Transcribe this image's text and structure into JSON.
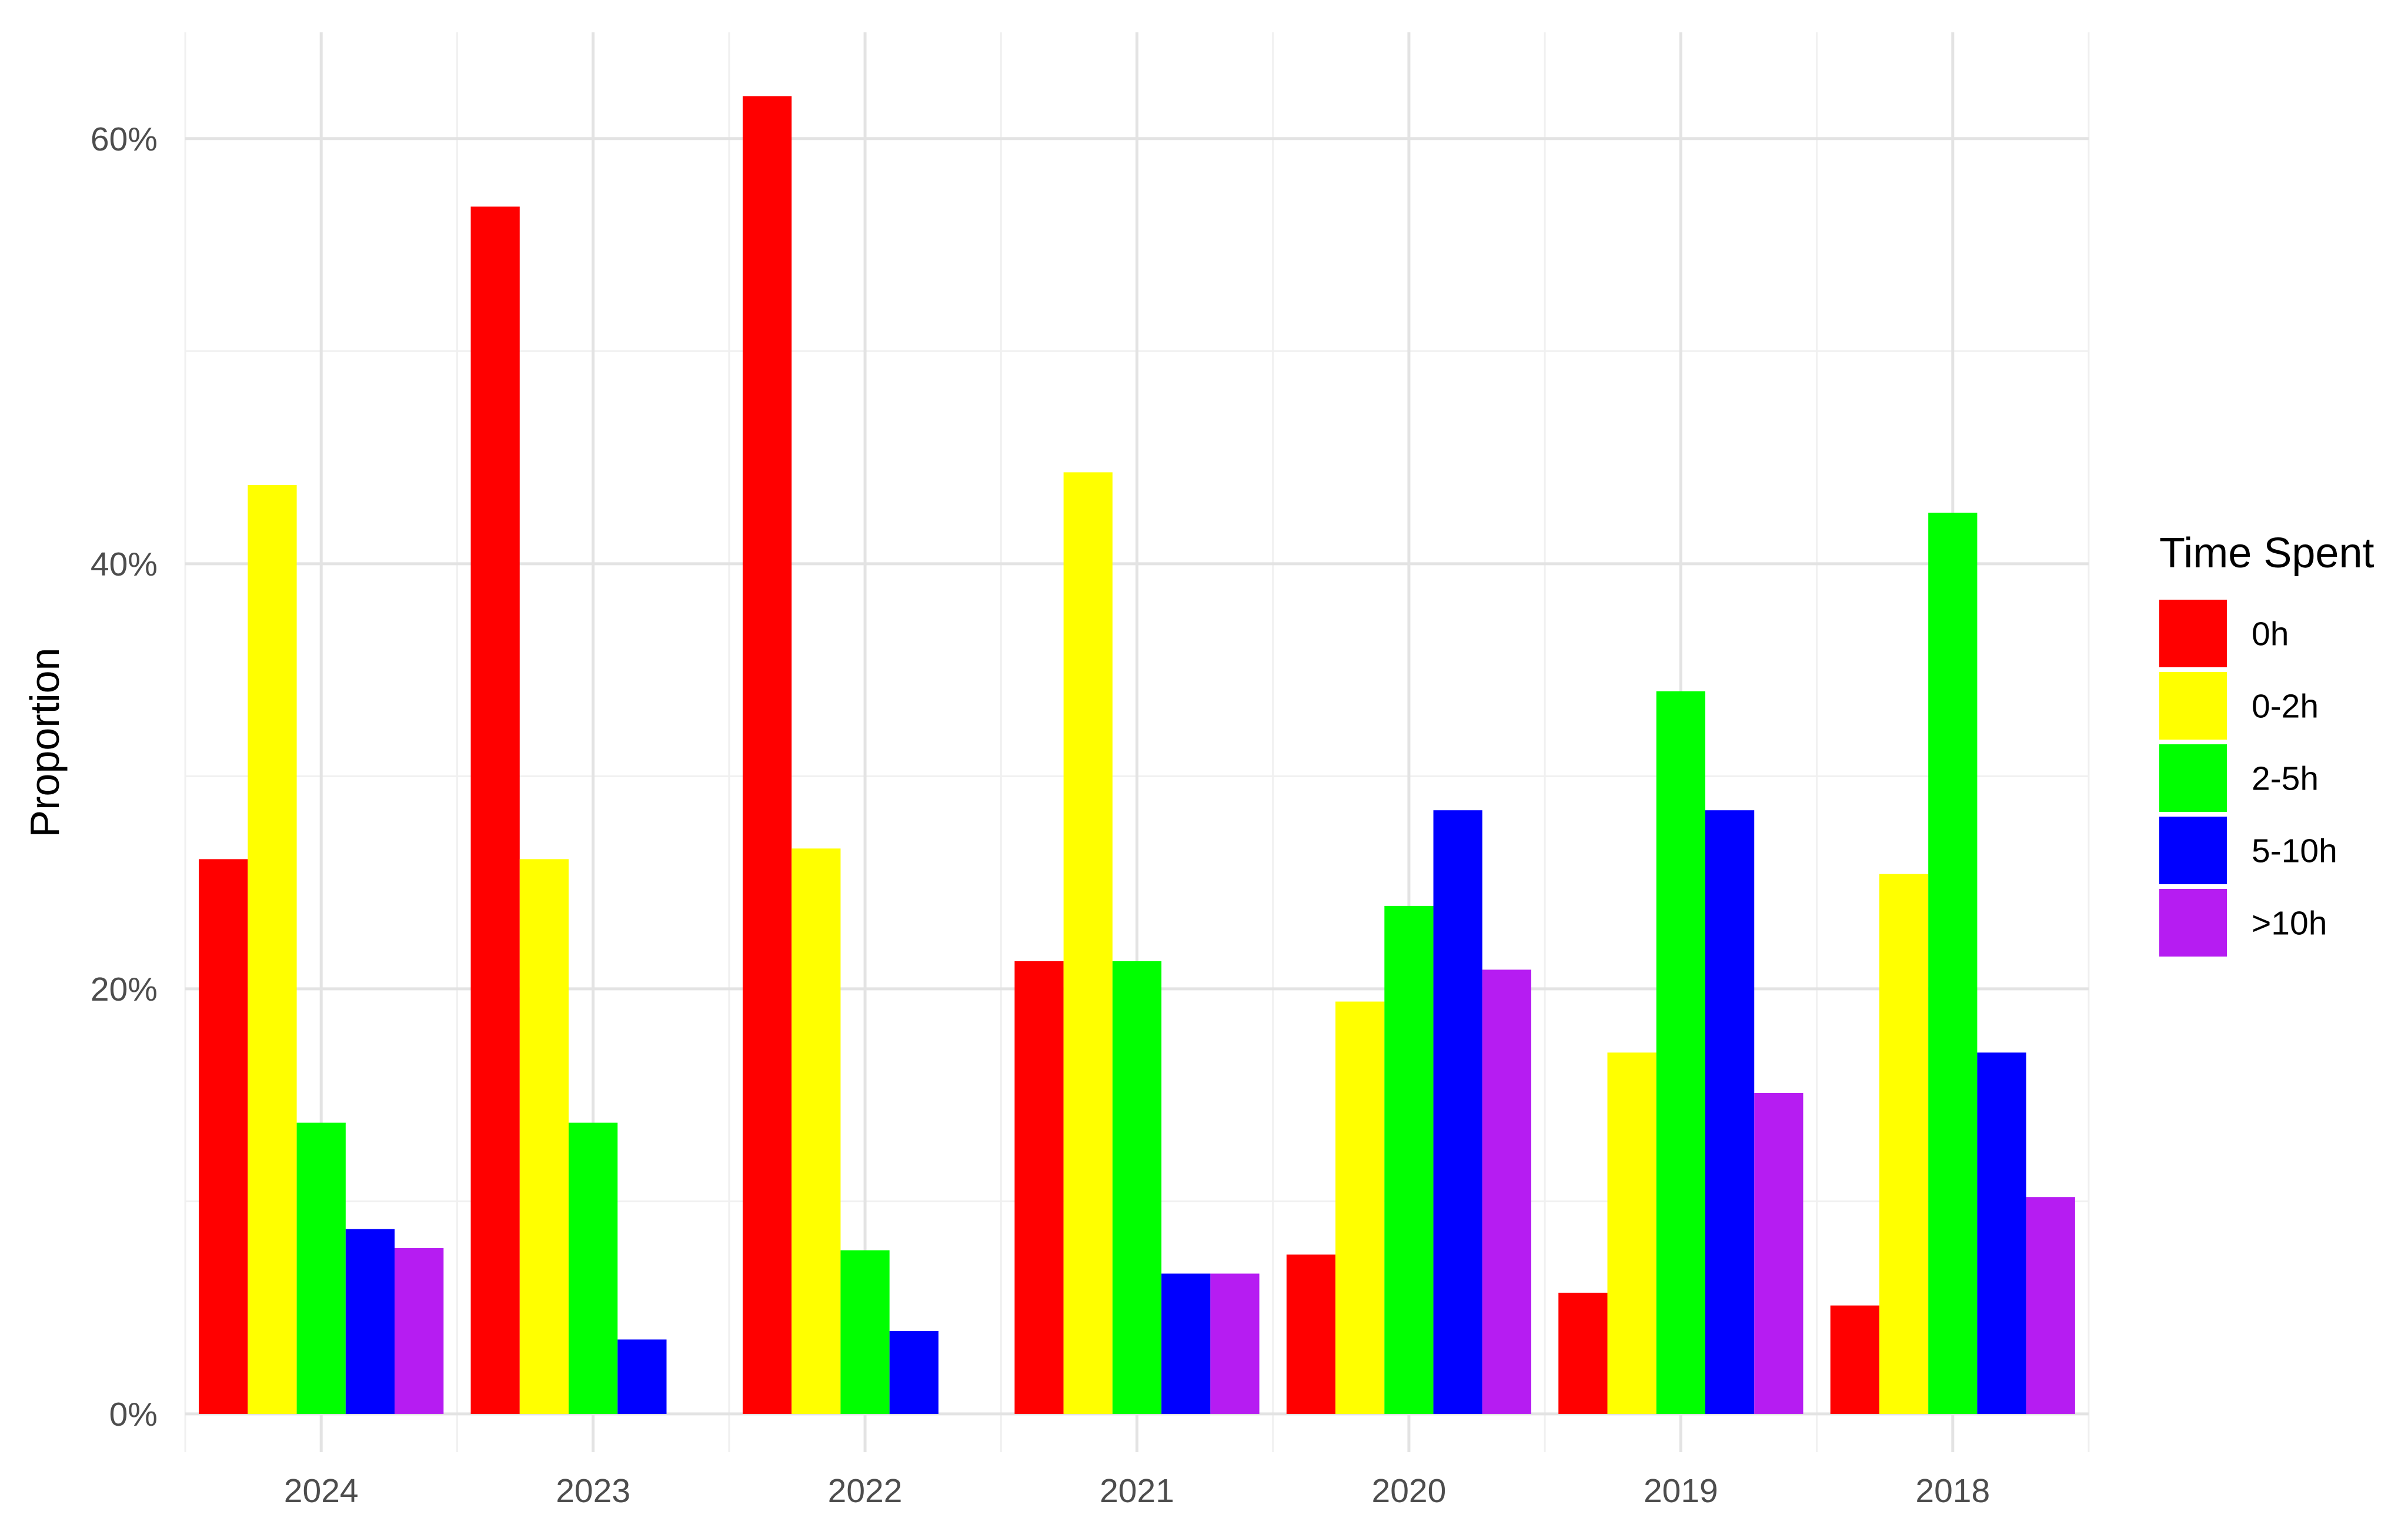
{
  "chart_data": {
    "type": "bar",
    "title": "",
    "xlabel": "",
    "ylabel": "Proportion",
    "categories": [
      "2024",
      "2023",
      "2022",
      "2021",
      "2020",
      "2019",
      "2018"
    ],
    "ylim": [
      -0.018,
      0.65
    ],
    "yticks": [
      0,
      0.2,
      0.4,
      0.6
    ],
    "ytick_labels": [
      "0%",
      "20%",
      "40%",
      "60%"
    ],
    "grid": true,
    "legend": {
      "title": "Time Spent",
      "position": "right"
    },
    "series": [
      {
        "name": "0h",
        "color": "#FF0000",
        "values": [
          0.261,
          0.568,
          0.62,
          0.213,
          0.075,
          0.057,
          0.051
        ]
      },
      {
        "name": "0-2h",
        "color": "#FFFF00",
        "values": [
          0.437,
          0.261,
          0.266,
          0.443,
          0.194,
          0.17,
          0.254
        ]
      },
      {
        "name": "2-5h",
        "color": "#00FF00",
        "values": [
          0.137,
          0.137,
          0.077,
          0.213,
          0.239,
          0.34,
          0.424
        ]
      },
      {
        "name": "5-10h",
        "color": "#0000FF",
        "values": [
          0.087,
          0.035,
          0.039,
          0.066,
          0.284,
          0.284,
          0.17
        ]
      },
      {
        "name": ">10h",
        "color": "#B61CF2",
        "values": [
          0.078,
          0.0,
          0.0,
          0.066,
          0.209,
          0.151,
          0.102
        ]
      }
    ]
  }
}
